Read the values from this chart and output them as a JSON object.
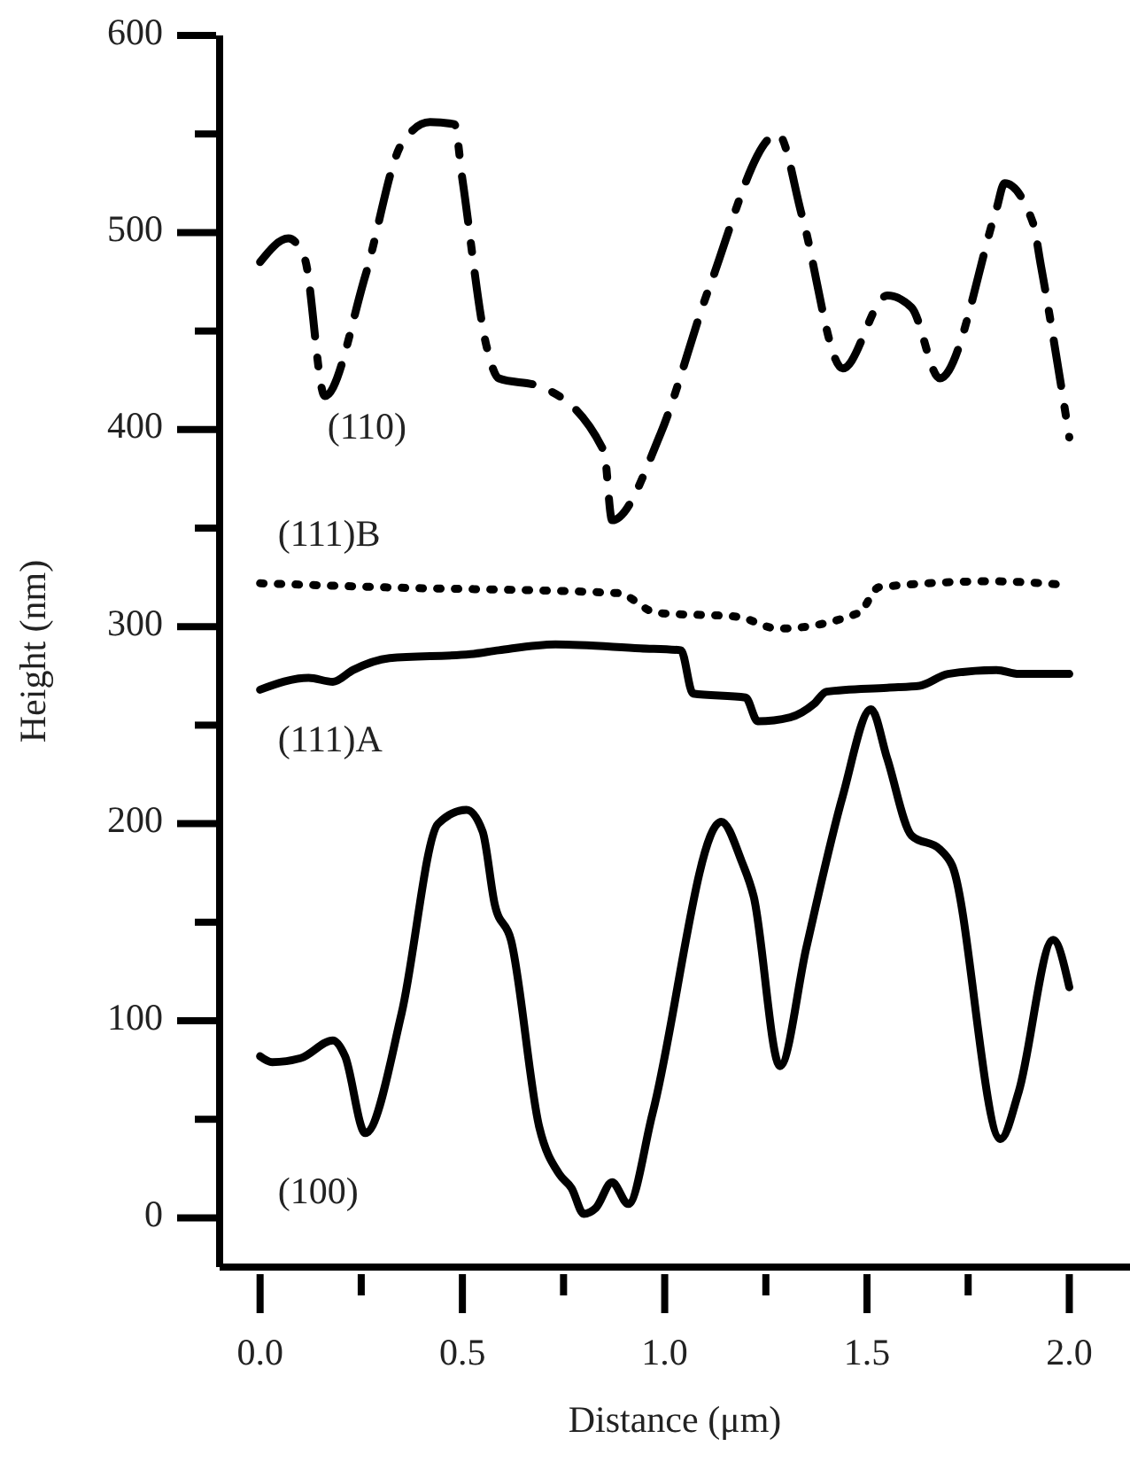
{
  "chart_data": {
    "type": "line",
    "xlabel": "Distance (μm)",
    "ylabel": "Height (nm)",
    "xlim": [
      -0.1,
      2.15
    ],
    "ylim": [
      -25,
      600
    ],
    "xticks": [
      {
        "value": 0,
        "label": "0.0"
      },
      {
        "value": 0.25,
        "label": null
      },
      {
        "value": 0.5,
        "label": "0.5"
      },
      {
        "value": 0.75,
        "label": null
      },
      {
        "value": 1,
        "label": "1.0"
      },
      {
        "value": 1.25,
        "label": null
      },
      {
        "value": 1.5,
        "label": "1.5"
      },
      {
        "value": 1.75,
        "label": null
      },
      {
        "value": 2,
        "label": "2.0"
      }
    ],
    "yticks": [
      0,
      {
        "value": 50,
        "label": null
      },
      100,
      {
        "value": 150,
        "label": null
      },
      200,
      {
        "value": 250,
        "label": null
      },
      300,
      {
        "value": 350,
        "label": null
      },
      400,
      {
        "value": 450,
        "label": null
      },
      500,
      {
        "value": 550,
        "label": null
      },
      600
    ],
    "grid": false,
    "marker": "none",
    "series": [
      {
        "name": "(110)",
        "color": "#000000",
        "line_style": "dashed",
        "x": [
          0,
          0.07,
          0.11,
          0.16,
          0.26,
          0.35,
          0.42,
          0.48,
          0.5,
          0.56,
          0.59,
          0.69,
          0.85,
          0.87,
          0.99,
          1.11,
          1.28,
          1.34,
          1.44,
          1.55,
          1.61,
          1.68,
          1.82,
          1.84,
          1.91,
          1.93,
          2.0
        ],
        "values": [
          485,
          497,
          487,
          417,
          478,
          545,
          556,
          555,
          527,
          442,
          426,
          422,
          389,
          354,
          398,
          472,
          550,
          508,
          431,
          468,
          462,
          426,
          512,
          525,
          505,
          483,
          396
        ]
      },
      {
        "name": "(111)B",
        "color": "#000000",
        "line_style": "dotted",
        "x": [
          0,
          0.3,
          0.885,
          0.98,
          1.18,
          1.28,
          1.48,
          1.53,
          1.81,
          2.0
        ],
        "values": [
          322,
          320,
          317,
          307,
          305,
          299,
          307,
          320,
          323,
          321
        ]
      },
      {
        "name": "(111)A",
        "color": "#000000",
        "line_style": "solid",
        "x": [
          0,
          0.12,
          0.18,
          0.23,
          0.32,
          0.52,
          0.59,
          0.73,
          0.94,
          1.04,
          1.07,
          1.2,
          1.23,
          1.31,
          1.37,
          1.4,
          1.55,
          1.63,
          1.7,
          1.82,
          1.875,
          2.0
        ],
        "values": [
          268,
          274,
          272,
          278,
          284,
          286,
          288,
          291,
          289,
          288,
          266,
          264,
          252,
          254,
          261,
          267,
          269,
          270,
          276,
          278,
          276,
          276
        ]
      },
      {
        "name": "(100)",
        "color": "#000000",
        "line_style": "solid",
        "x": [
          0,
          0.03,
          0.1,
          0.18,
          0.21,
          0.26,
          0.35,
          0.44,
          0.51,
          0.55,
          0.58,
          0.62,
          0.69,
          0.74,
          0.77,
          0.8,
          0.83,
          0.87,
          0.91,
          0.97,
          1.14,
          1.19,
          1.22,
          1.285,
          1.35,
          1.44,
          1.51,
          1.55,
          1.61,
          1.68,
          1.71,
          1.83,
          1.875,
          1.96,
          2.0
        ],
        "values": [
          82,
          79,
          81,
          90,
          82,
          43,
          104,
          200,
          207,
          196,
          159,
          141,
          46,
          22,
          15,
          2,
          5,
          18,
          7,
          53,
          201,
          181,
          163,
          77,
          137,
          214,
          258,
          233,
          194,
          187,
          179,
          40,
          64,
          141,
          117
        ]
      }
    ]
  }
}
